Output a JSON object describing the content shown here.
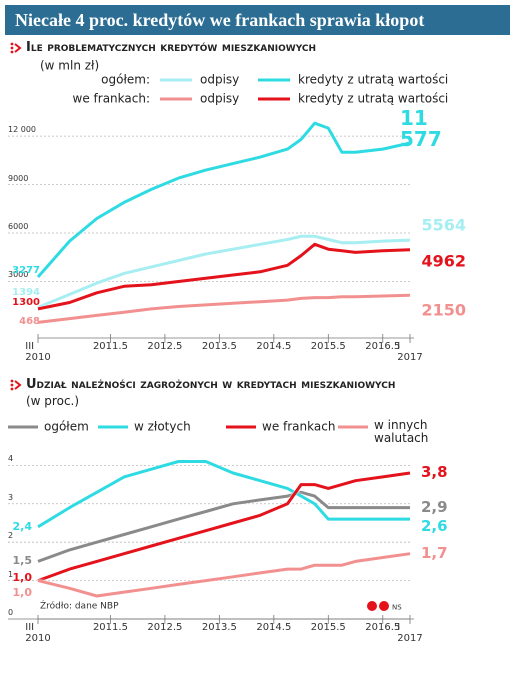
{
  "header_title": "Niecałe 4 proc. kredytów we frankach sprawia kłopot",
  "source": "Źródło: dane NBP",
  "credit": "NS",
  "chart_data": [
    {
      "type": "line",
      "title": "Ile problematycznych kredytów mieszkaniowych",
      "subtitle": "(w mln zł)",
      "legend_groups": [
        "ogółem:",
        "we frankach:"
      ],
      "x": [
        2010.17,
        2010.75,
        2011.25,
        2011.75,
        2012.25,
        2012.75,
        2013.25,
        2013.75,
        2014.25,
        2014.75,
        2015.0,
        2015.25,
        2015.5,
        2015.75,
        2016.0,
        2016.5,
        2017.0
      ],
      "xlim": [
        2010.17,
        2017.0
      ],
      "xticks": [
        {
          "value": 2010.17,
          "label": "III\n2010"
        },
        2011.5,
        2012.5,
        2013.5,
        2014.5,
        2015.5,
        2016.5,
        {
          "value": 2017.0,
          "label": "I\n2017"
        }
      ],
      "ylim": [
        -500,
        13000
      ],
      "yticks": [
        3000,
        6000,
        9000,
        {
          "value": 12000,
          "label": "12 000"
        }
      ],
      "grid": true,
      "series": [
        {
          "name": "odpisy",
          "color": "#a6eef1",
          "values": [
            1394,
            2200,
            2900,
            3500,
            3900,
            4300,
            4700,
            5000,
            5300,
            5600,
            5800,
            5800,
            5600,
            5400,
            5400,
            5500,
            5564
          ]
        },
        {
          "name": "kredyty z utratą wartości",
          "color": "#2fdbe2",
          "values": [
            3277,
            5500,
            6900,
            7900,
            8700,
            9400,
            9900,
            10300,
            10700,
            11200,
            11800,
            12800,
            12500,
            11000,
            11000,
            11200,
            11577
          ],
          "value_labels": [
            null,
            null,
            null,
            null,
            null,
            null,
            null,
            null,
            null,
            null,
            null,
            null,
            null,
            null,
            null,
            null,
            "11 577"
          ]
        },
        {
          "name": "odpisy",
          "color": "#f29090",
          "values": [
            468,
            700,
            900,
            1100,
            1300,
            1450,
            1550,
            1650,
            1750,
            1850,
            1950,
            2000,
            2000,
            2050,
            2050,
            2100,
            2150
          ]
        },
        {
          "name": "kredyty z utratą wartości",
          "color": "#e3121b",
          "values": [
            1300,
            1700,
            2300,
            2700,
            2800,
            3000,
            3200,
            3400,
            3600,
            4000,
            4600,
            5300,
            5000,
            4900,
            4800,
            4900,
            4962
          ]
        }
      ]
    },
    {
      "type": "line",
      "title": "Udział należności zagrożonych w kredytach mieszkaniowych",
      "subtitle": "(w proc.)",
      "x": [
        2010.17,
        2010.75,
        2011.25,
        2011.75,
        2012.25,
        2012.75,
        2013.25,
        2013.75,
        2014.25,
        2014.75,
        2015.0,
        2015.25,
        2015.5,
        2015.75,
        2016.0,
        2016.5,
        2017.0
      ],
      "xlim": [
        2010.17,
        2017.0
      ],
      "xticks": [
        {
          "value": 2010.17,
          "label": "III\n2010"
        },
        2011.5,
        2012.5,
        2013.5,
        2014.5,
        2015.5,
        2016.5,
        {
          "value": 2017.0,
          "label": "I\n2017"
        }
      ],
      "ylim": [
        0,
        4.4
      ],
      "yticks": [
        0,
        1,
        2,
        3,
        4
      ],
      "grid": true,
      "series": [
        {
          "name": "ogółem",
          "color": "#8a8a8a",
          "values": [
            1.5,
            1.8,
            2.0,
            2.2,
            2.4,
            2.6,
            2.8,
            3.0,
            3.1,
            3.2,
            3.3,
            3.2,
            2.9,
            2.9,
            2.9,
            2.9,
            2.9
          ],
          "value_labels": [
            "1,5",
            null,
            null,
            null,
            null,
            null,
            null,
            null,
            null,
            null,
            null,
            null,
            null,
            null,
            null,
            null,
            "2,9"
          ]
        },
        {
          "name": "w złotych",
          "color": "#2fdbe2",
          "values": [
            2.4,
            2.9,
            3.3,
            3.7,
            3.9,
            4.1,
            4.1,
            3.8,
            3.6,
            3.4,
            3.2,
            3.0,
            2.6,
            2.6,
            2.6,
            2.6,
            2.6
          ],
          "value_labels": [
            "2,4",
            null,
            null,
            null,
            null,
            null,
            null,
            null,
            null,
            null,
            null,
            null,
            null,
            null,
            null,
            null,
            "2,6"
          ]
        },
        {
          "name": "we frankach",
          "color": "#e3121b",
          "values": [
            1.0,
            1.3,
            1.5,
            1.7,
            1.9,
            2.1,
            2.3,
            2.5,
            2.7,
            3.0,
            3.5,
            3.5,
            3.4,
            3.5,
            3.6,
            3.7,
            3.8
          ],
          "value_labels": [
            "1,0",
            null,
            null,
            null,
            null,
            null,
            null,
            null,
            null,
            null,
            null,
            null,
            null,
            null,
            null,
            null,
            "3,8"
          ]
        },
        {
          "name": "w innych walutach",
          "color": "#f29090",
          "values": [
            1.0,
            0.8,
            0.6,
            0.7,
            0.8,
            0.9,
            1.0,
            1.1,
            1.2,
            1.3,
            1.3,
            1.4,
            1.4,
            1.4,
            1.5,
            1.6,
            1.7
          ],
          "value_labels": [
            "1,0",
            null,
            null,
            null,
            null,
            null,
            null,
            null,
            null,
            null,
            null,
            null,
            null,
            null,
            null,
            null,
            "1,7"
          ]
        }
      ]
    }
  ]
}
